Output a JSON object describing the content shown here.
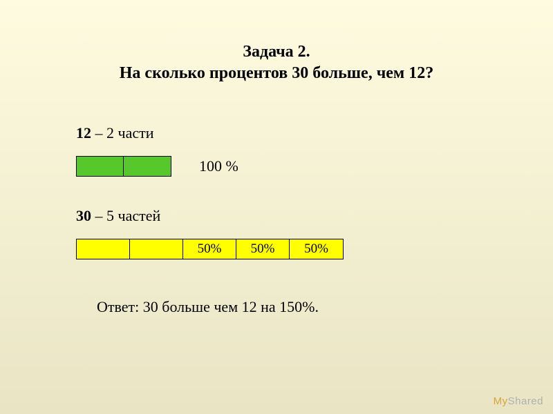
{
  "colors": {
    "page_bg_top": "#fffbe0",
    "page_bg_bottom": "#e8e4c4",
    "bar1_fill": "#56c82c",
    "bar2_fill": "#ffff00",
    "border": "#000000",
    "text": "#000000"
  },
  "title": {
    "line1": "Задача 2.",
    "line2": "На сколько процентов 30 больше, чем 12?"
  },
  "row1": {
    "bold_value": "12",
    "rest": " – 2 части",
    "parts": 2,
    "pct_label": "100 %"
  },
  "row2": {
    "bold_value": "30",
    "rest": " – 5 частей",
    "parts": 5,
    "cell_labels": [
      "",
      "",
      "50%",
      "50%",
      "50%"
    ]
  },
  "answer": "Ответ: 30 больше чем 12 на 150%.",
  "watermark": {
    "my": "My",
    "shared": "Shared"
  }
}
